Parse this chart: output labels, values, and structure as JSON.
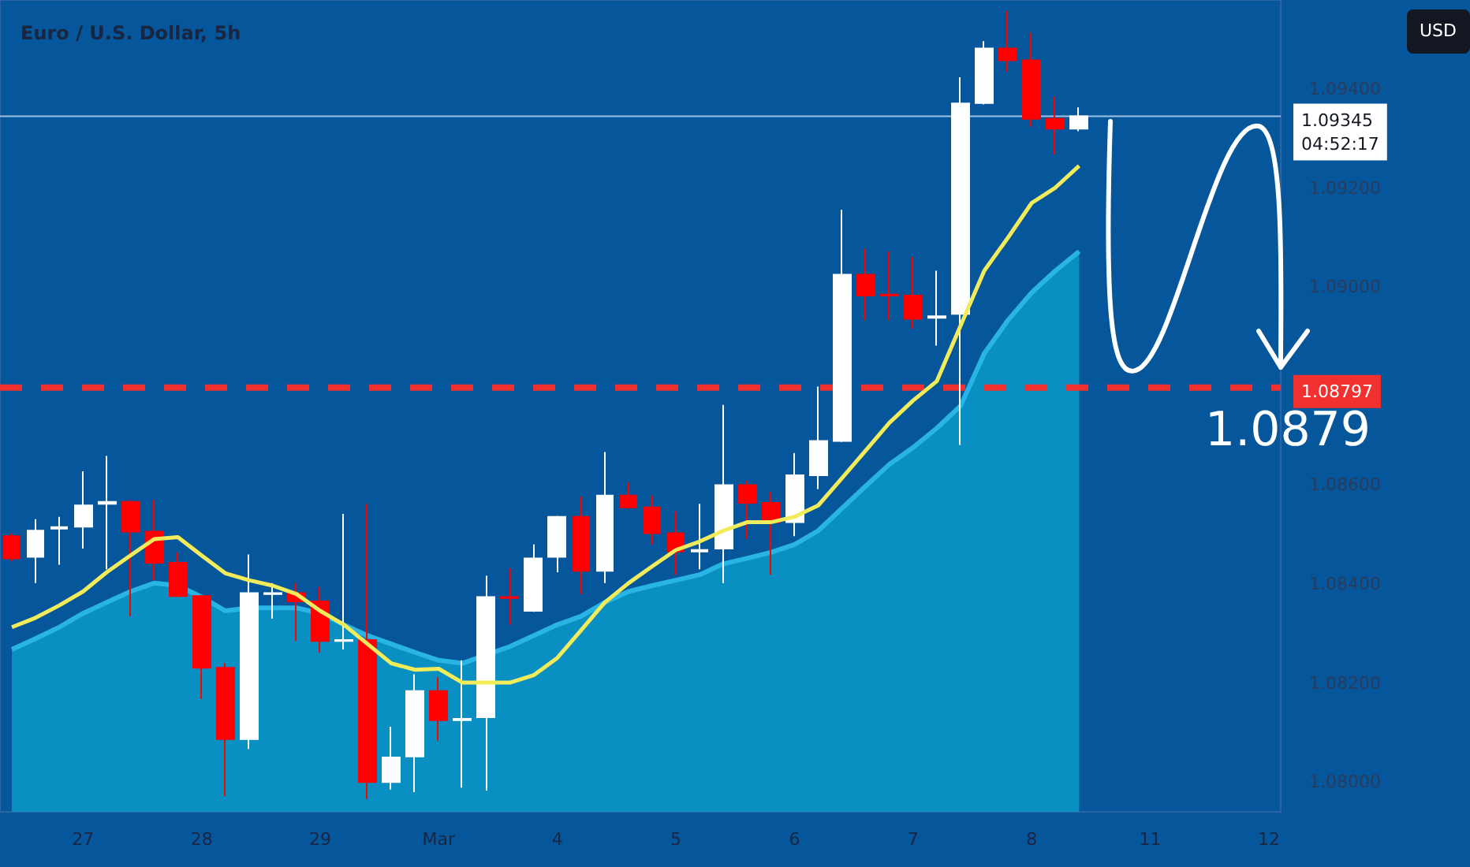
{
  "chart_data": {
    "type": "candlestick",
    "title": "Euro / U.S. Dollar, 5h",
    "categories": [
      null,
      null,
      null,
      "27",
      null,
      null,
      null,
      null,
      "28",
      null,
      null,
      null,
      null,
      "29",
      null,
      null,
      null,
      null,
      "Mar",
      null,
      null,
      null,
      null,
      "4",
      null,
      null,
      null,
      null,
      "5",
      null,
      null,
      null,
      null,
      "6",
      null,
      null,
      null,
      null,
      "7",
      null,
      null,
      null,
      null,
      "8",
      null,
      null,
      null,
      null,
      "11",
      null,
      null,
      null,
      null,
      "12"
    ],
    "series": [
      {
        "type": "area",
        "color": "#0a8fc2",
        "values": [
          1.08268,
          1.0829,
          1.08313,
          1.08341,
          1.08363,
          1.08385,
          1.08402,
          1.08397,
          1.08374,
          1.08346,
          1.08352,
          1.08352,
          1.08352,
          1.08341,
          1.08318,
          1.08296,
          1.08279,
          1.08262,
          1.08246,
          1.0824,
          1.08257,
          1.08274,
          1.08296,
          1.08318,
          1.08335,
          1.08363,
          1.08385,
          1.08397,
          1.08408,
          1.08419,
          1.08441,
          1.08452,
          1.08464,
          1.0848,
          1.08508,
          1.08553,
          1.08598,
          1.08642,
          1.08676,
          1.08715,
          1.0876,
          1.08866,
          1.08933,
          1.08989,
          1.09033,
          1.09072,
          null,
          null,
          null,
          null,
          null,
          null,
          null,
          null
        ]
      },
      {
        "type": "line",
        "color": "#f2ec5a",
        "values": [
          1.08313,
          1.08332,
          1.08357,
          1.08385,
          1.08424,
          1.08458,
          1.08491,
          1.08495,
          1.08458,
          1.08422,
          1.08408,
          1.08397,
          1.0838,
          1.08346,
          1.08318,
          1.08279,
          1.0824,
          1.08227,
          1.08229,
          1.08201,
          1.08201,
          1.08201,
          1.08216,
          1.08251,
          1.08307,
          1.08363,
          1.08402,
          1.08436,
          1.08469,
          1.08486,
          1.08508,
          1.08525,
          1.08525,
          1.08536,
          1.08559,
          1.08614,
          1.0867,
          1.08726,
          1.08771,
          1.0881,
          1.08922,
          1.09033,
          1.091,
          1.0917,
          1.09201,
          1.09245,
          null,
          null,
          null,
          null,
          null,
          null,
          null,
          null
        ]
      },
      {
        "type": "candlestick",
        "colors": [
          "#ff0000",
          "#ffffff",
          "#ffffff",
          "#ffffff",
          "#ffffff",
          "#ff0000",
          "#ff0000",
          "#ff0000",
          "#ff0000",
          "#ff0000",
          "#ffffff",
          "#ffffff",
          "#ff0000",
          "#ff0000",
          "#ffffff",
          "#ff0000",
          "#ffffff",
          "#ffffff",
          "#ff0000",
          "#ffffff",
          "#ffffff",
          "#ff0000",
          "#ffffff",
          "#ffffff",
          "#ff0000",
          "#ffffff",
          "#ff0000",
          "#ff0000",
          "#ff0000",
          "#ffffff",
          "#ffffff",
          "#ff0000",
          "#ff0000",
          "#ffffff",
          "#ffffff",
          "#ffffff",
          "#ff0000",
          "#ff0000",
          "#ff0000",
          "#ffffff",
          "#ffffff",
          "#ffffff",
          "#ff0000",
          "#ff0000",
          "#ff0000",
          "#ffffff",
          null,
          null,
          null,
          null,
          null,
          null,
          null,
          null
        ],
        "ohlc": [
          [
            1.08497,
            1.08503,
            1.08446,
            1.08452
          ],
          [
            1.08455,
            1.08531,
            1.08402,
            1.08508
          ],
          [
            1.08512,
            1.08536,
            1.08439,
            1.08515
          ],
          [
            1.08516,
            1.08628,
            1.08472,
            1.08559
          ],
          [
            1.08562,
            1.08659,
            1.0843,
            1.08566
          ],
          [
            1.08566,
            1.0857,
            1.08335,
            1.08506
          ],
          [
            1.08506,
            1.0857,
            1.08408,
            1.08443
          ],
          [
            1.08443,
            1.08464,
            1.08374,
            1.08376
          ],
          [
            1.08376,
            1.08378,
            1.08168,
            1.08231
          ],
          [
            1.08231,
            1.0824,
            1.07972,
            1.08087
          ],
          [
            1.08087,
            1.0846,
            1.08067,
            1.08382
          ],
          [
            1.0838,
            1.08402,
            1.0833,
            1.08382
          ],
          [
            1.08382,
            1.08402,
            1.08285,
            1.08365
          ],
          [
            1.08365,
            1.08394,
            1.08262,
            1.08285
          ],
          [
            1.08285,
            1.08542,
            1.08268,
            1.08287
          ],
          [
            1.08287,
            1.08562,
            1.07966,
            1.08
          ],
          [
            1.08,
            1.08112,
            1.07985,
            1.0805
          ],
          [
            1.08052,
            1.08218,
            1.0798,
            1.08184
          ],
          [
            1.08184,
            1.08212,
            1.08084,
            1.08125
          ],
          [
            1.08125,
            1.08246,
            1.07989,
            1.08128
          ],
          [
            1.08131,
            1.08417,
            1.07983,
            1.08374
          ],
          [
            1.08374,
            1.08432,
            1.08318,
            1.08372
          ],
          [
            1.08346,
            1.0848,
            1.08344,
            1.08452
          ],
          [
            1.08455,
            1.08538,
            1.08424,
            1.08536
          ],
          [
            1.08536,
            1.08577,
            1.0838,
            1.08427
          ],
          [
            1.08427,
            1.08667,
            1.08402,
            1.08579
          ],
          [
            1.08579,
            1.08605,
            1.08553,
            1.08555
          ],
          [
            1.08555,
            1.08579,
            1.0848,
            1.08503
          ],
          [
            1.08503,
            1.08547,
            1.08419,
            1.08466
          ],
          [
            1.08466,
            1.08562,
            1.0843,
            1.08469
          ],
          [
            1.08472,
            1.08762,
            1.08402,
            1.086
          ],
          [
            1.086,
            1.08609,
            1.08491,
            1.08564
          ],
          [
            1.08564,
            1.08586,
            1.08419,
            1.08525
          ],
          [
            1.08525,
            1.08665,
            1.08497,
            1.0862
          ],
          [
            1.0862,
            1.08799,
            1.08592,
            1.08689
          ],
          [
            1.08689,
            1.09156,
            1.08687,
            1.09025
          ],
          [
            1.09025,
            1.09078,
            1.08933,
            1.08983
          ],
          [
            1.08985,
            1.09072,
            1.08933,
            1.08983
          ],
          [
            1.08983,
            1.09061,
            1.08916,
            1.08936
          ],
          [
            1.08938,
            1.09033,
            1.08882,
            1.08941
          ],
          [
            1.08946,
            1.09424,
            1.08681,
            1.09371
          ],
          [
            1.09372,
            1.09497,
            1.09369,
            1.09482
          ],
          [
            1.09482,
            1.09558,
            1.09435,
            1.09458
          ],
          [
            1.09458,
            1.09514,
            1.09324,
            1.0934
          ],
          [
            1.0934,
            1.09385,
            1.09268,
            1.0932
          ],
          [
            1.0932,
            1.09363,
            1.09315,
            1.09345
          ],
          null,
          null,
          null,
          null,
          null,
          null,
          null,
          null
        ]
      }
    ],
    "ylim": [
      1.0794,
      1.0958
    ],
    "yticks": [
      {
        "value": 1.08,
        "label": "1.08000"
      },
      {
        "value": 1.082,
        "label": "1.08200"
      },
      {
        "value": 1.084,
        "label": "1.08400"
      },
      {
        "value": 1.086,
        "label": "1.08600"
      },
      {
        "value": 1.09,
        "label": "1.09000"
      },
      {
        "value": 1.092,
        "label": "1.09200"
      },
      {
        "value": 1.094,
        "label": "1.09400"
      }
    ],
    "ref_lines": [
      {
        "axis": "y",
        "value": 1.08797,
        "label": "1.08797",
        "color": "#f23030",
        "line_style": "dashed"
      },
      {
        "axis": "y",
        "value": 1.09345,
        "label": "1.09345",
        "color": "#9cc3e6",
        "line_style": "solid"
      }
    ],
    "annotations": [
      {
        "text": "1.0879",
        "y": 1.08797
      },
      "04:52:17",
      "USD"
    ],
    "grid": false
  }
}
